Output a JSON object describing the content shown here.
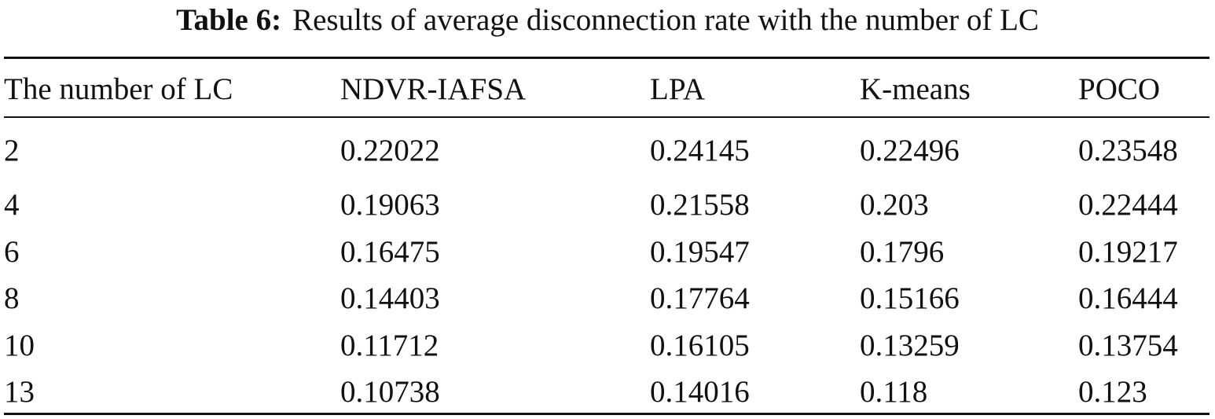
{
  "caption": {
    "label": "Table 6:",
    "text": "Results of average disconnection rate with the number of LC"
  },
  "table": {
    "columns": [
      "The number of LC",
      "NDVR-IAFSA",
      "LPA",
      "K-means",
      "POCO"
    ],
    "rows": [
      [
        "2",
        "0.22022",
        "0.24145",
        "0.22496",
        "0.23548"
      ],
      [
        "4",
        "0.19063",
        "0.21558",
        "0.203",
        "0.22444"
      ],
      [
        "6",
        "0.16475",
        "0.19547",
        "0.1796",
        "0.19217"
      ],
      [
        "8",
        "0.14403",
        "0.17764",
        "0.15166",
        "0.16444"
      ],
      [
        "10",
        "0.11712",
        "0.16105",
        "0.13259",
        "0.13754"
      ],
      [
        "13",
        "0.10738",
        "0.14016",
        "0.118",
        "0.123"
      ]
    ]
  }
}
